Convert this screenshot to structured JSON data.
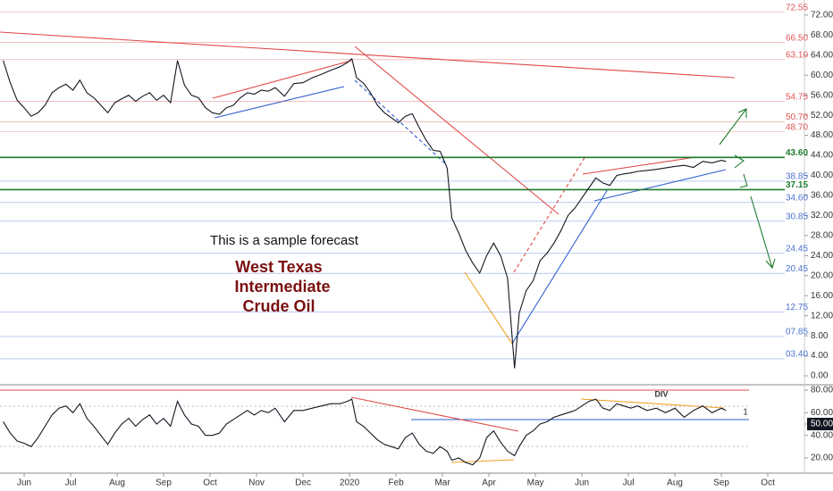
{
  "chart_data": [
    {
      "type": "line",
      "annotation": "This is a sample forecast",
      "title_lines": [
        "West Texas",
        "Intermediate",
        "Crude Oil"
      ],
      "xlim": [
        -0.52,
        16.21
      ],
      "ylim": [
        -1.6,
        75.0
      ],
      "yticks": [
        {
          "value": 72,
          "label": "72.00"
        },
        {
          "value": 68,
          "label": "68.00"
        },
        {
          "value": 64,
          "label": "64.00"
        },
        {
          "value": 60,
          "label": "60.00"
        },
        {
          "value": 56,
          "label": "56.00"
        },
        {
          "value": 52,
          "label": "52.00"
        },
        {
          "value": 48,
          "label": "48.00"
        },
        {
          "value": 44,
          "label": "44.00"
        },
        {
          "value": 40,
          "label": "40.00"
        },
        {
          "value": 36,
          "label": "36.00"
        },
        {
          "value": 32,
          "label": "32.00"
        },
        {
          "value": 28,
          "label": "28.00"
        },
        {
          "value": 24,
          "label": "24.00"
        },
        {
          "value": 20,
          "label": "20.00"
        },
        {
          "value": 16,
          "label": "16.00"
        },
        {
          "value": 12,
          "label": "12.00"
        },
        {
          "value": 8,
          "label": "8.00"
        },
        {
          "value": 4,
          "label": "4.00"
        },
        {
          "value": 0,
          "label": "0.00"
        }
      ],
      "levels": [
        {
          "value": 72.55,
          "label": "72.55",
          "color": "#e05555"
        },
        {
          "value": 66.5,
          "label": "66.50",
          "color": "#e05555"
        },
        {
          "value": 63.1,
          "label": "63.10",
          "color": "#e05555"
        },
        {
          "value": 54.75,
          "label": "54.75",
          "color": "#e05555"
        },
        {
          "value": 50.7,
          "label": "50.70",
          "color": "#e05555"
        },
        {
          "value": 48.7,
          "label": "48.70",
          "color": "#e05555"
        },
        {
          "value": 43.6,
          "label": "43.60",
          "color": "#1e7b2e"
        },
        {
          "value": 38.85,
          "label": "38.85",
          "color": "#4a72d0"
        },
        {
          "value": 37.15,
          "label": "37.15",
          "color": "#1e7b2e"
        },
        {
          "value": 34.6,
          "label": "34.60",
          "color": "#4a72d0"
        },
        {
          "value": 30.85,
          "label": "30.85",
          "color": "#4a72d0"
        },
        {
          "value": 24.45,
          "label": "24.45",
          "color": "#4a72d0"
        },
        {
          "value": 20.45,
          "label": "20.45",
          "color": "#4a72d0"
        },
        {
          "value": 12.75,
          "label": "12.75",
          "color": "#4a72d0"
        },
        {
          "value": 7.85,
          "label": "07.85",
          "color": "#4a72d0"
        },
        {
          "value": 3.4,
          "label": "03.40",
          "color": "#4a72d0"
        }
      ],
      "x": [
        -0.45,
        -0.3,
        -0.15,
        0,
        0.15,
        0.3,
        0.45,
        0.6,
        0.75,
        0.9,
        1.05,
        1.2,
        1.35,
        1.5,
        1.65,
        1.8,
        1.95,
        2.1,
        2.25,
        2.4,
        2.55,
        2.7,
        2.85,
        3,
        3.15,
        3.3,
        3.45,
        3.6,
        3.75,
        3.9,
        4.05,
        4.2,
        4.35,
        4.5,
        4.65,
        4.8,
        4.95,
        5.1,
        5.25,
        5.4,
        5.6,
        5.8,
        6,
        6.2,
        6.4,
        6.6,
        6.8,
        6.95,
        7.05,
        7.15,
        7.3,
        7.45,
        7.6,
        7.75,
        7.9,
        8.05,
        8.2,
        8.35,
        8.5,
        8.65,
        8.8,
        8.95,
        9.1,
        9.2,
        9.35,
        9.5,
        9.65,
        9.8,
        9.95,
        10.1,
        10.25,
        10.4,
        10.55,
        10.65,
        10.8,
        10.95,
        11.1,
        11.25,
        11.4,
        11.55,
        11.7,
        11.85,
        12,
        12.15,
        12.3,
        12.45,
        12.6,
        12.75,
        12.9,
        13.05,
        13.2,
        13.4,
        13.6,
        13.8,
        14,
        14.2,
        14.4,
        14.6,
        14.8,
        15,
        15.1
      ],
      "series": [
        {
          "color": "#131722",
          "values": [
            62.9,
            58.5,
            55,
            53.5,
            51.8,
            52.5,
            54,
            56.5,
            57.5,
            58.2,
            57,
            59,
            56.5,
            55.5,
            54,
            52.5,
            54.5,
            55.3,
            56,
            54.8,
            55.8,
            56.5,
            55,
            56,
            54.5,
            62.9,
            58,
            56,
            55.5,
            53.5,
            52.5,
            52.2,
            53.5,
            54,
            55.5,
            56.5,
            56.2,
            57,
            56.8,
            57.5,
            55.8,
            58.3,
            58.5,
            59.5,
            60.2,
            61,
            61.7,
            62.5,
            63.3,
            59.5,
            58.4,
            56.5,
            54,
            52.5,
            51.5,
            50.5,
            51.8,
            52.3,
            49.5,
            47,
            45,
            44.8,
            41.5,
            31.5,
            28.5,
            25,
            22.5,
            20.5,
            24,
            26.5,
            24,
            19.5,
            1.5,
            12.5,
            17,
            19,
            23,
            24.5,
            26.5,
            29,
            32,
            33.5,
            35.5,
            37.5,
            39.5,
            38.5,
            38,
            40,
            40.3,
            40.5,
            40.8,
            41,
            41.2,
            41.5,
            41.8,
            42,
            41.6,
            42.8,
            42.5,
            43,
            42.8
          ]
        }
      ]
    },
    {
      "type": "line",
      "annotations": [
        "DIV",
        "1"
      ],
      "xlim": [
        -0.52,
        16.21
      ],
      "ylim": [
        6.6,
        83.9
      ],
      "yticks": [
        {
          "value": 80,
          "label": "80.00"
        },
        {
          "value": 60,
          "label": "60.00"
        },
        {
          "value": 50,
          "label": "50.00",
          "style": "boxed"
        },
        {
          "value": 40,
          "label": "40.00"
        },
        {
          "value": 20,
          "label": "20.00"
        }
      ],
      "xticks": [
        {
          "value": 0,
          "label": "Jun"
        },
        {
          "value": 1,
          "label": "Jul"
        },
        {
          "value": 2,
          "label": "Aug"
        },
        {
          "value": 3,
          "label": "Sep"
        },
        {
          "value": 4,
          "label": "Oct"
        },
        {
          "value": 5,
          "label": "Nov"
        },
        {
          "value": 6,
          "label": "Dec"
        },
        {
          "value": 7,
          "label": "2020"
        },
        {
          "value": 8,
          "label": "Feb"
        },
        {
          "value": 9,
          "label": "Mar"
        },
        {
          "value": 10,
          "label": "Apr"
        },
        {
          "value": 11,
          "label": "May"
        },
        {
          "value": 12,
          "label": "Jun"
        },
        {
          "value": 13,
          "label": "Jul"
        },
        {
          "value": 14,
          "label": "Aug"
        },
        {
          "value": 15,
          "label": "Sep"
        },
        {
          "value": 16,
          "label": "Oct"
        }
      ],
      "series": [
        {
          "color": "#131722",
          "values": [
            52,
            42,
            35,
            33,
            30,
            38,
            48,
            58,
            64,
            66,
            60,
            68,
            55,
            48,
            40,
            32,
            42,
            50,
            55,
            48,
            54,
            58,
            50,
            55,
            48,
            70,
            58,
            50,
            48,
            40,
            40,
            42,
            50,
            54,
            58,
            62,
            58,
            62,
            60,
            64,
            52,
            62,
            62,
            64,
            66,
            68,
            68,
            70,
            72,
            52,
            48,
            42,
            36,
            32,
            30,
            28,
            38,
            42,
            32,
            26,
            24,
            30,
            26,
            18,
            20,
            16,
            14,
            20,
            38,
            44,
            34,
            26,
            22,
            30,
            40,
            44,
            50,
            52,
            56,
            58,
            60,
            62,
            66,
            70,
            72,
            64,
            62,
            68,
            66,
            64,
            66,
            62,
            64,
            60,
            64,
            56,
            62,
            66,
            60,
            64,
            62
          ]
        }
      ]
    }
  ]
}
